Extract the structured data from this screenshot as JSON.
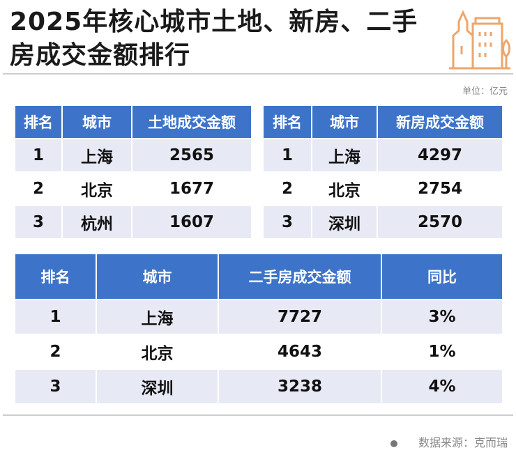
{
  "title": "2025年核心城市土地、新房、二手房成交金额排行",
  "unit": "单位：亿元",
  "accent_color": "#3d74c9",
  "logo_icon": "city-buildings-icon",
  "land_table": {
    "headers": [
      "排名",
      "城市",
      "土地成交金额"
    ],
    "rows": [
      [
        "1",
        "上海",
        "2565"
      ],
      [
        "2",
        "北京",
        "1677"
      ],
      [
        "3",
        "杭州",
        "1607"
      ]
    ]
  },
  "new_home_table": {
    "headers": [
      "排名",
      "城市",
      "新房成交金额"
    ],
    "rows": [
      [
        "1",
        "上海",
        "4297"
      ],
      [
        "2",
        "北京",
        "2754"
      ],
      [
        "3",
        "深圳",
        "2570"
      ]
    ]
  },
  "second_hand_table": {
    "headers": [
      "排名",
      "城市",
      "二手房成交金额",
      "同比"
    ],
    "rows": [
      [
        "1",
        "上海",
        "7727",
        "3%"
      ],
      [
        "2",
        "北京",
        "4643",
        "1%"
      ],
      [
        "3",
        "深圳",
        "3238",
        "4%"
      ]
    ]
  },
  "source": "数据来源：克而瑞"
}
